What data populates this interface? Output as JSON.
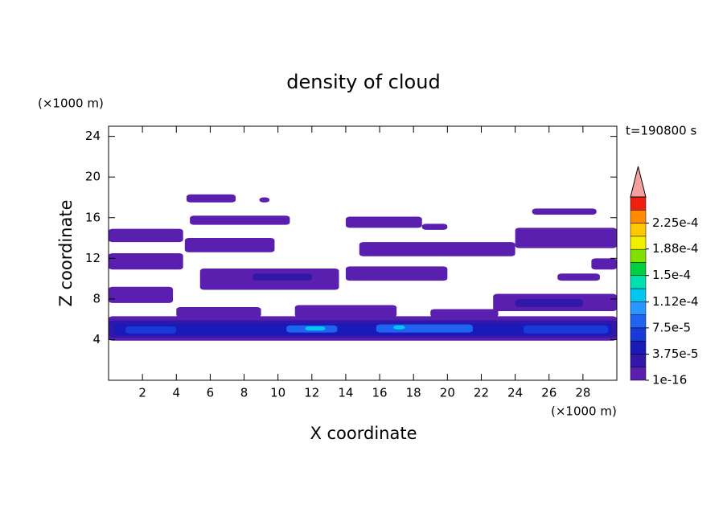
{
  "chart_data": {
    "type": "contour",
    "title": "density of cloud",
    "x_label": "X coordinate",
    "y_label": "Z coordinate",
    "x_unit": "(×1000 m)",
    "y_unit": "(×1000 m)",
    "annotation": "t=190800 s",
    "xlim": [
      0,
      30
    ],
    "xticks": [
      2,
      4,
      6,
      8,
      10,
      12,
      14,
      16,
      18,
      20,
      22,
      24,
      26,
      28
    ],
    "ylim": [
      0,
      25
    ],
    "yticks": [
      4,
      8,
      12,
      16,
      20,
      24
    ],
    "colorbar": {
      "clim": [
        0,
        0.0002625
      ],
      "colors": [
        "#5b1fb0",
        "#3218a8",
        "#1a1ab8",
        "#1a3ad8",
        "#1e64f0",
        "#2a96ff",
        "#00c8f0",
        "#00e0b0",
        "#00d040",
        "#80e000",
        "#f0f000",
        "#ffc800",
        "#ff8c00",
        "#f02010"
      ],
      "over_color": "#f4a0a0",
      "ticks": [
        {
          "value": 1e-16,
          "label": "1e-16"
        },
        {
          "value": 3.75e-05,
          "label": "3.75e-5"
        },
        {
          "value": 7.5e-05,
          "label": "7.5e-5"
        },
        {
          "value": 0.000112,
          "label": "1.12e-4"
        },
        {
          "value": 0.00015,
          "label": "1.5e-4"
        },
        {
          "value": 0.000188,
          "label": "1.88e-4"
        },
        {
          "value": 0.000225,
          "label": "2.25e-4"
        }
      ]
    },
    "regions": [
      {
        "x": [
          0,
          30
        ],
        "z": [
          3.9,
          6.3
        ],
        "value": 1e-16
      },
      {
        "x": [
          0,
          30
        ],
        "z": [
          4.2,
          5.9
        ],
        "value": 2e-05
      },
      {
        "x": [
          0.3,
          29.7
        ],
        "z": [
          4.4,
          5.6
        ],
        "value": 4e-05
      },
      {
        "x": [
          1,
          4
        ],
        "z": [
          4.6,
          5.3
        ],
        "value": 6e-05
      },
      {
        "x": [
          10.5,
          13.5
        ],
        "z": [
          4.7,
          5.4
        ],
        "value": 8e-05
      },
      {
        "x": [
          15.8,
          21.5
        ],
        "z": [
          4.7,
          5.5
        ],
        "value": 8e-05
      },
      {
        "x": [
          11.6,
          12.8
        ],
        "z": [
          4.9,
          5.3
        ],
        "value": 0.00012
      },
      {
        "x": [
          16.8,
          17.5
        ],
        "z": [
          5.0,
          5.4
        ],
        "value": 0.00012
      },
      {
        "x": [
          24.5,
          29.5
        ],
        "z": [
          4.6,
          5.4
        ],
        "value": 6e-05
      },
      {
        "x": [
          0,
          3.8
        ],
        "z": [
          7.6,
          9.2
        ],
        "value": 1e-16
      },
      {
        "x": [
          0,
          4.4
        ],
        "z": [
          10.9,
          12.5
        ],
        "value": 1e-16
      },
      {
        "x": [
          0,
          4.4
        ],
        "z": [
          13.6,
          14.9
        ],
        "value": 1e-16
      },
      {
        "x": [
          4.6,
          7.5
        ],
        "z": [
          17.5,
          18.3
        ],
        "value": 1e-16
      },
      {
        "x": [
          8.9,
          9.5
        ],
        "z": [
          17.5,
          18.0
        ],
        "value": 1e-16
      },
      {
        "x": [
          4.8,
          10.7
        ],
        "z": [
          15.3,
          16.2
        ],
        "value": 1e-16
      },
      {
        "x": [
          4.5,
          9.8
        ],
        "z": [
          12.6,
          14.0
        ],
        "value": 1e-16
      },
      {
        "x": [
          5.4,
          13.6
        ],
        "z": [
          8.9,
          11.0
        ],
        "value": 1e-16
      },
      {
        "x": [
          8.5,
          12
        ],
        "z": [
          9.8,
          10.5
        ],
        "value": 2e-05
      },
      {
        "x": [
          14,
          18.5
        ],
        "z": [
          15.0,
          16.1
        ],
        "value": 1e-16
      },
      {
        "x": [
          18.5,
          20
        ],
        "z": [
          14.8,
          15.4
        ],
        "value": 1e-16
      },
      {
        "x": [
          14.8,
          24
        ],
        "z": [
          12.2,
          13.6
        ],
        "value": 1e-16
      },
      {
        "x": [
          14,
          20
        ],
        "z": [
          9.8,
          11.2
        ],
        "value": 1e-16
      },
      {
        "x": [
          22.7,
          30
        ],
        "z": [
          6.8,
          8.5
        ],
        "value": 1e-16
      },
      {
        "x": [
          24,
          28
        ],
        "z": [
          7.2,
          8.0
        ],
        "value": 2e-05
      },
      {
        "x": [
          24,
          30
        ],
        "z": [
          13.0,
          15.0
        ],
        "value": 1e-16
      },
      {
        "x": [
          25,
          28.8
        ],
        "z": [
          16.3,
          16.9
        ],
        "value": 1e-16
      },
      {
        "x": [
          28.5,
          30
        ],
        "z": [
          10.9,
          12.0
        ],
        "value": 1e-16
      },
      {
        "x": [
          26.5,
          29
        ],
        "z": [
          9.8,
          10.5
        ],
        "value": 1e-16
      },
      {
        "x": [
          4,
          9
        ],
        "z": [
          6.2,
          7.2
        ],
        "value": 1e-16
      },
      {
        "x": [
          11,
          17
        ],
        "z": [
          6.2,
          7.4
        ],
        "value": 1e-16
      },
      {
        "x": [
          19,
          23
        ],
        "z": [
          6.2,
          7.0
        ],
        "value": 1e-16
      }
    ]
  }
}
